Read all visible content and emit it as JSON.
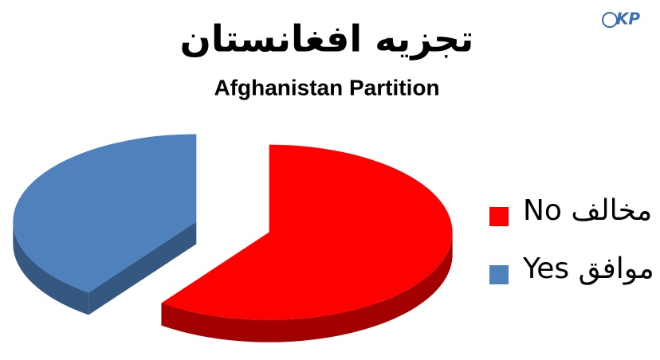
{
  "logo": "KP",
  "chart_data": {
    "type": "pie",
    "title": "تجزیه افغانستان",
    "subtitle": "Afghanistan Partition",
    "categories": [
      "No مخالف",
      "Yes موافق"
    ],
    "values": [
      60,
      40
    ],
    "colors": [
      "#ff0000",
      "#4f81bd"
    ],
    "side_colors": [
      "#a30000",
      "#34587f"
    ],
    "legend": "right"
  }
}
